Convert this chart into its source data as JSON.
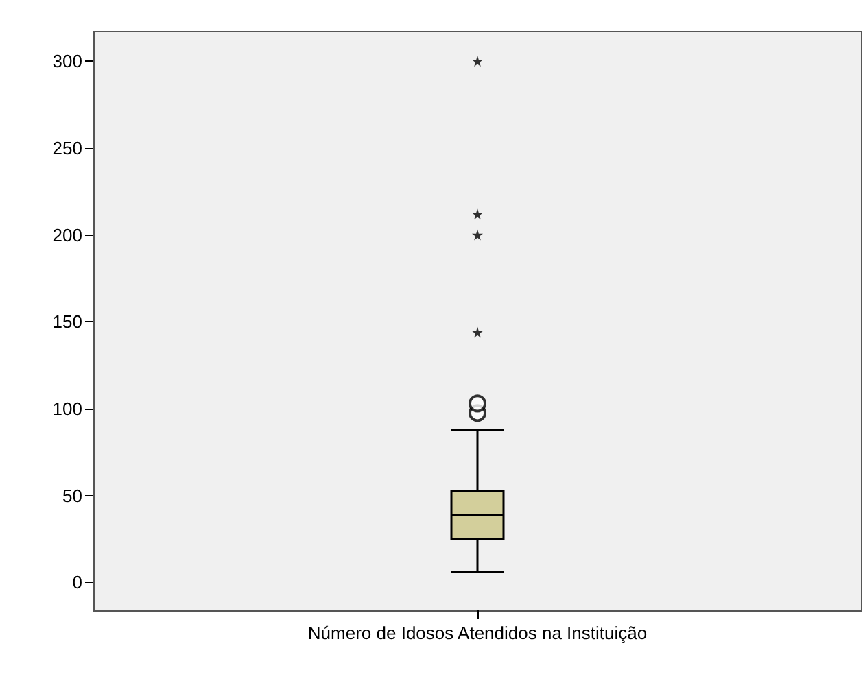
{
  "chart_data": {
    "type": "box",
    "categories": [
      "Número de Idosos Atendidos na Instituição"
    ],
    "ylim": [
      -16,
      317
    ],
    "yticks": [
      0,
      50,
      100,
      150,
      200,
      250,
      300
    ],
    "grid": false,
    "series": [
      {
        "type": "box",
        "color": "#d3cf9b",
        "boxes": [
          {
            "low": 6,
            "q1": 25,
            "median": 39,
            "q3": 52.5,
            "high": 88,
            "outliers": [
              97.5,
              103
            ]
          }
        ]
      },
      {
        "type": "scatter",
        "marker": "star",
        "color": "#000000",
        "x": [
          "Número de Idosos Atendidos na Instituição",
          "Número de Idosos Atendidos na Instituição",
          "Número de Idosos Atendidos na Instituição",
          "Número de Idosos Atendidos na Instituição"
        ],
        "values": [
          144,
          200,
          212,
          300
        ]
      }
    ]
  }
}
